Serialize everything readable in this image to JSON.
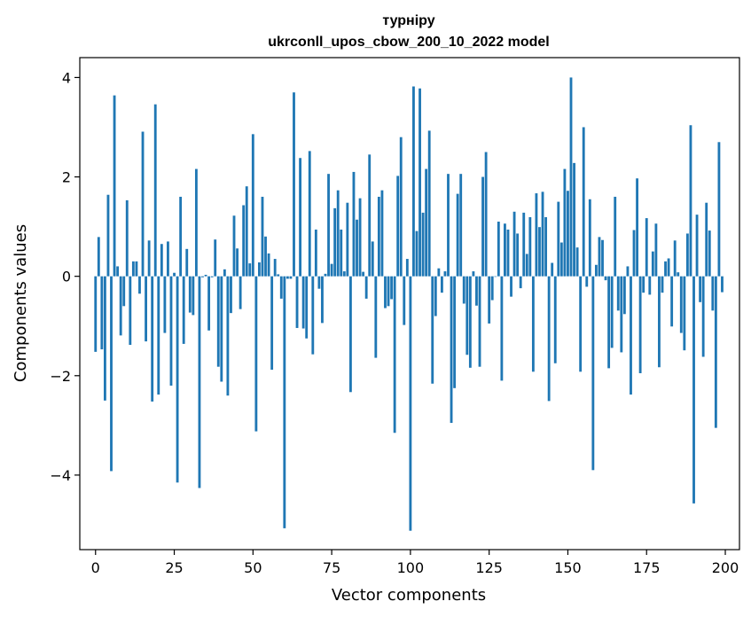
{
  "chart_data": {
    "type": "bar",
    "title_line1": "турніру",
    "title_line2": "ukrconll_upos_cbow_200_10_2022 model",
    "xlabel": "Vector components",
    "ylabel": "Components values",
    "xlim": [
      -5,
      204.5
    ],
    "ylim": [
      -5.5,
      4.4
    ],
    "x_ticks": [
      0,
      25,
      50,
      75,
      100,
      125,
      150,
      175,
      200
    ],
    "y_ticks": [
      4,
      2,
      0,
      -2,
      -4
    ],
    "y_tick_labels": [
      "4",
      "2",
      "0",
      "−2",
      "−4"
    ],
    "bar_color": "#1f77b4",
    "grid": false,
    "values": [
      -1.52,
      0.79,
      -1.47,
      -2.5,
      1.64,
      -3.92,
      3.64,
      0.2,
      -1.19,
      -0.6,
      1.53,
      -1.38,
      0.3,
      0.3,
      -0.35,
      2.91,
      -1.31,
      0.72,
      -2.52,
      3.46,
      -2.38,
      0.65,
      -1.14,
      0.7,
      -2.2,
      0.07,
      -4.15,
      1.6,
      -1.36,
      0.55,
      -0.73,
      -0.78,
      2.16,
      -4.26,
      -0.02,
      0.03,
      -1.09,
      -0.02,
      0.74,
      -1.82,
      -2.12,
      0.14,
      -2.4,
      -0.74,
      1.22,
      0.56,
      -0.66,
      1.43,
      1.81,
      0.26,
      2.86,
      -3.12,
      0.28,
      1.6,
      0.8,
      0.46,
      -1.88,
      0.35,
      0.04,
      -0.45,
      -5.07,
      -0.05,
      -0.05,
      3.7,
      -1.04,
      2.38,
      -1.05,
      -1.25,
      2.52,
      -1.57,
      0.94,
      -0.25,
      -0.94,
      0.05,
      2.06,
      0.25,
      1.37,
      1.73,
      0.94,
      0.1,
      1.48,
      -2.33,
      2.1,
      1.14,
      1.57,
      0.09,
      -0.45,
      2.45,
      0.7,
      -1.64,
      1.6,
      1.73,
      -0.64,
      -0.6,
      -0.46,
      -3.15,
      2.02,
      2.8,
      -0.98,
      0.35,
      -5.12,
      3.82,
      0.91,
      3.78,
      1.28,
      2.16,
      2.93,
      -2.16,
      -0.8,
      0.16,
      -0.33,
      0.1,
      2.06,
      -2.95,
      -2.25,
      1.66,
      2.06,
      -0.55,
      -1.58,
      -1.84,
      0.1,
      -0.59,
      -1.82,
      2.0,
      2.5,
      -0.95,
      -0.48,
      0.0,
      1.1,
      -2.1,
      1.06,
      0.94,
      -0.41,
      1.3,
      0.86,
      -0.24,
      1.28,
      0.45,
      1.19,
      -1.92,
      1.67,
      0.99,
      1.7,
      1.19,
      -2.51,
      0.27,
      -1.75,
      1.5,
      0.68,
      2.16,
      1.72,
      4.0,
      2.28,
      0.58,
      -1.92,
      3.0,
      -0.21,
      1.55,
      -3.9,
      0.23,
      0.79,
      0.73,
      -0.08,
      -1.85,
      -1.44,
      1.6,
      -0.69,
      -1.53,
      -0.76,
      0.2,
      -2.38,
      0.93,
      1.97,
      -1.95,
      -0.33,
      1.17,
      -0.37,
      0.5,
      1.06,
      -1.83,
      -0.33,
      0.3,
      0.36,
      -1.01,
      0.72,
      0.08,
      -1.14,
      -1.49,
      0.86,
      3.04,
      -4.57,
      1.24,
      -0.52,
      -1.62,
      1.48,
      0.92,
      -0.69,
      -3.05,
      2.7,
      -0.32
    ]
  }
}
